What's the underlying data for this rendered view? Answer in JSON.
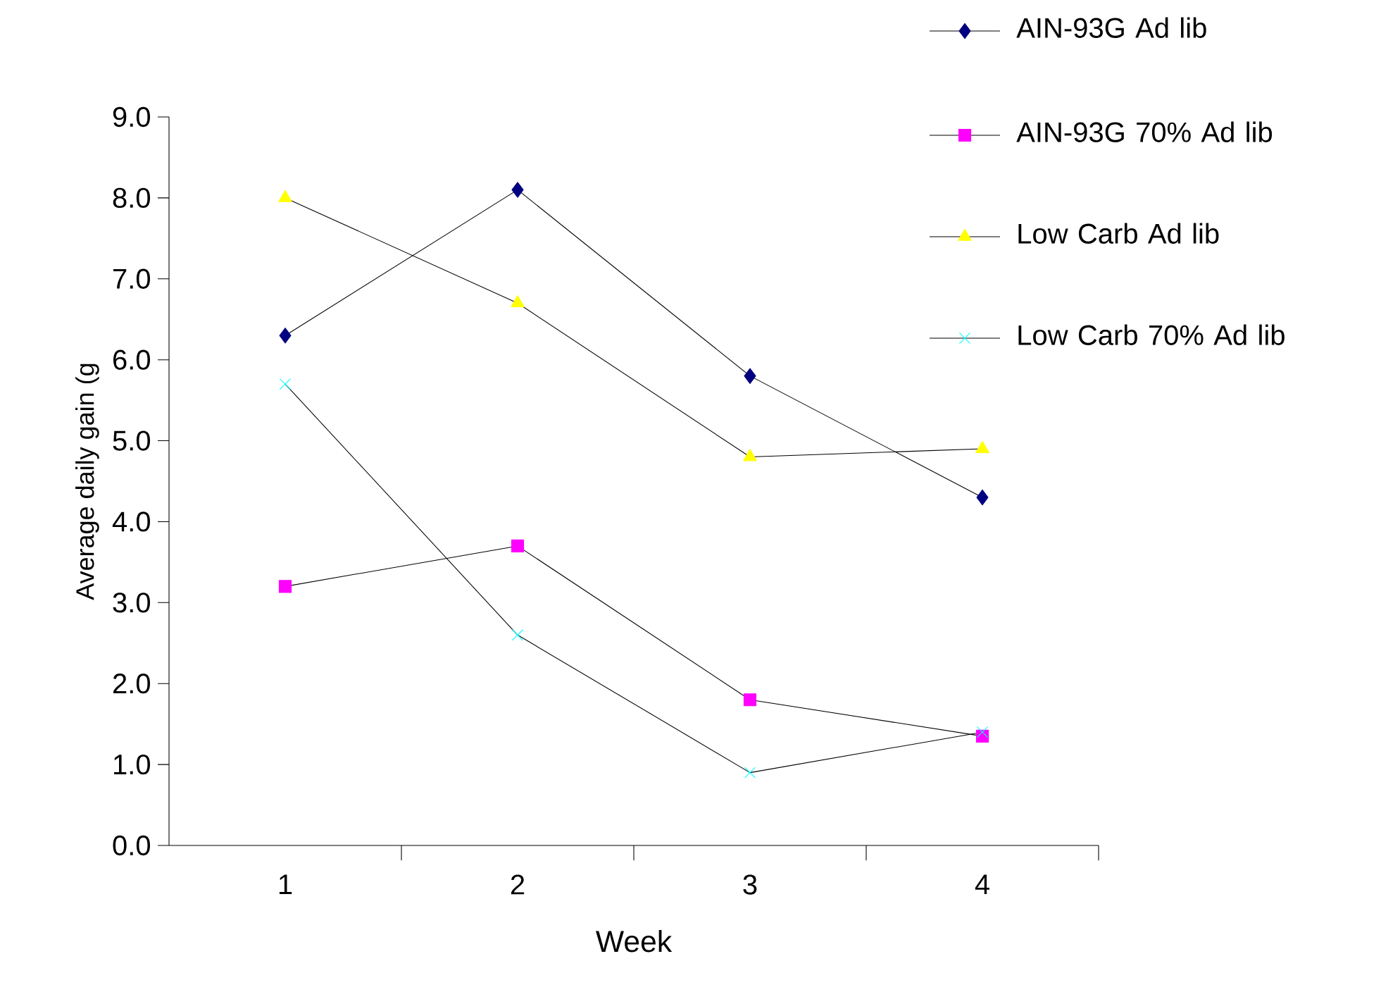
{
  "chart_data": {
    "type": "line",
    "xlabel": "Week",
    "ylabel": "Average daily gain (g",
    "categories": [
      "1",
      "2",
      "3",
      "4"
    ],
    "series": [
      {
        "name": "AIN-93G Ad lib",
        "color": "#000080",
        "marker": "diamond",
        "values": [
          6.3,
          8.1,
          5.8,
          4.3
        ]
      },
      {
        "name": "AIN-93G   70% Ad lib",
        "color": "#ff00ff",
        "marker": "square",
        "values": [
          3.2,
          3.7,
          1.8,
          1.35
        ]
      },
      {
        "name": "Low Carb Ad lib",
        "color": "#ffff00",
        "marker": "triangle",
        "values": [
          8.0,
          6.7,
          4.8,
          4.9
        ]
      },
      {
        "name": "Low Carb 70% Ad lib",
        "color": "#00ffff",
        "marker": "cross",
        "values": [
          5.7,
          2.6,
          0.9,
          1.4
        ]
      }
    ],
    "ylim": [
      0,
      9
    ],
    "yticks": [
      {
        "value": 0,
        "label": "0.0"
      },
      {
        "value": 1,
        "label": "1.0"
      },
      {
        "value": 2,
        "label": "2.0"
      },
      {
        "value": 3,
        "label": "3.0"
      },
      {
        "value": 4,
        "label": "4.0"
      },
      {
        "value": 5,
        "label": "5.0"
      },
      {
        "value": 6,
        "label": "6.0"
      },
      {
        "value": 7,
        "label": "7.0"
      },
      {
        "value": 8,
        "label": "8.0"
      },
      {
        "value": 9,
        "label": "9.0"
      }
    ],
    "legend": "right"
  }
}
